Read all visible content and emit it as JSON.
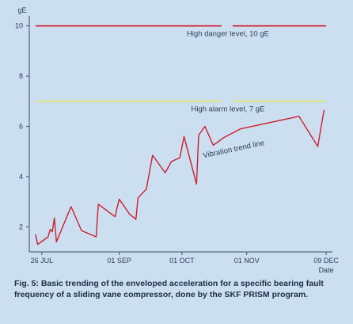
{
  "chart_data": {
    "type": "line",
    "title": "",
    "ylabel": "gE",
    "xlabel": "Date",
    "ylim": [
      1,
      10.4
    ],
    "xlim": [
      "2000-07-20",
      "2000-12-12"
    ],
    "y_ticks": [
      2,
      4,
      6,
      8,
      10
    ],
    "x_ticks": [
      {
        "date": "2000-07-26",
        "label": "26 JUL"
      },
      {
        "date": "2000-09-01",
        "label": "01 SEP"
      },
      {
        "date": "2000-10-01",
        "label": "01 OCT"
      },
      {
        "date": "2000-11-01",
        "label": "01 NOV"
      },
      {
        "date": "2000-12-09",
        "label": "09 DEC"
      }
    ],
    "grid": false,
    "colors": {
      "background": "#ccdff1",
      "axis": "#3a4d66",
      "trend": "#cc1f2b",
      "danger": "#cc1f2b",
      "alarm": "#e8e85c"
    },
    "reference_lines": [
      {
        "name": "High danger level, 10 gE",
        "value": 10,
        "color": "#cc1f2b",
        "label_date": "2000-10-23",
        "label_y": 9.6
      },
      {
        "name": "High alarm level, 7 gE",
        "value": 7,
        "color": "#e8e85c",
        "label_date": "2000-10-23",
        "label_y": 6.6
      }
    ],
    "series": [
      {
        "name": "",
        "label": "Vibration trend line",
        "points": [
          {
            "x": "2000-07-23",
            "y": 1.7
          },
          {
            "x": "2000-07-24",
            "y": 1.3
          },
          {
            "x": "2000-07-29",
            "y": 1.6
          },
          {
            "x": "2000-07-30",
            "y": 1.9
          },
          {
            "x": "2000-07-31",
            "y": 1.8
          },
          {
            "x": "2000-08-01",
            "y": 2.35
          },
          {
            "x": "2000-08-02",
            "y": 1.4
          },
          {
            "x": "2000-08-09",
            "y": 2.8
          },
          {
            "x": "2000-08-14",
            "y": 1.85
          },
          {
            "x": "2000-08-21",
            "y": 1.6
          },
          {
            "x": "2000-08-22",
            "y": 2.9
          },
          {
            "x": "2000-08-30",
            "y": 2.4
          },
          {
            "x": "2000-09-01",
            "y": 3.1
          },
          {
            "x": "2000-09-06",
            "y": 2.5
          },
          {
            "x": "2000-09-09",
            "y": 2.3
          },
          {
            "x": "2000-09-10",
            "y": 3.15
          },
          {
            "x": "2000-09-14",
            "y": 3.5
          },
          {
            "x": "2000-09-17",
            "y": 4.85
          },
          {
            "x": "2000-09-23",
            "y": 4.15
          },
          {
            "x": "2000-09-26",
            "y": 4.6
          },
          {
            "x": "2000-09-30",
            "y": 4.75
          },
          {
            "x": "2000-10-02",
            "y": 5.6
          },
          {
            "x": "2000-10-08",
            "y": 3.7
          },
          {
            "x": "2000-10-09",
            "y": 5.65
          },
          {
            "x": "2000-10-12",
            "y": 6.0
          },
          {
            "x": "2000-10-16",
            "y": 5.25
          },
          {
            "x": "2000-10-21",
            "y": 5.55
          },
          {
            "x": "2000-10-29",
            "y": 5.9
          },
          {
            "x": "2000-11-26",
            "y": 6.4
          },
          {
            "x": "2000-12-05",
            "y": 5.2
          },
          {
            "x": "2000-12-08",
            "y": 6.65
          }
        ],
        "label_date": "2000-10-26",
        "label_y": 5.0
      }
    ]
  },
  "caption": "Fig. 5: Basic trending of the enveloped acceleration for a specific bearing fault frequency of a sliding vane compressor, done by the SKF PRISM program."
}
